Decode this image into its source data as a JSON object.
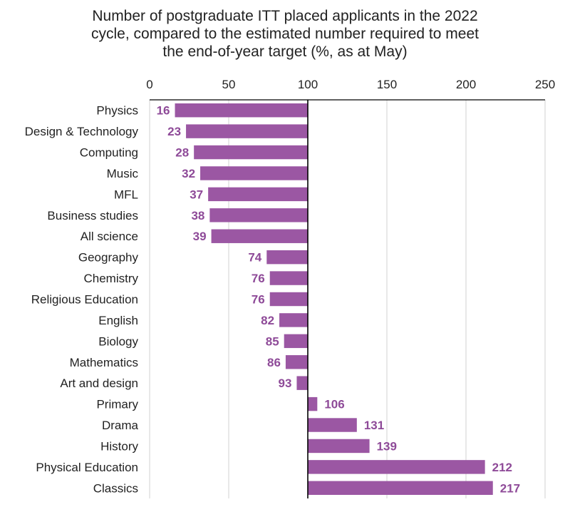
{
  "chart_data": {
    "type": "bar",
    "orientation": "horizontal",
    "title_lines": [
      "Number of postgraduate ITT placed applicants in the 2022",
      "cycle, compared to the estimated number required to meet",
      "the end-of-year target (%, as at May)"
    ],
    "categories": [
      "Physics",
      "Design & Technology",
      "Computing",
      "Music",
      "MFL",
      "Business studies",
      "All science",
      "Geography",
      "Chemistry",
      "Religious Education",
      "English",
      "Biology",
      "Mathematics",
      "Art and design",
      "Primary",
      "Drama",
      "History",
      "Physical Education",
      "Classics"
    ],
    "values": [
      16,
      23,
      28,
      32,
      37,
      38,
      39,
      74,
      76,
      76,
      82,
      85,
      86,
      93,
      106,
      131,
      139,
      212,
      217
    ],
    "baseline": 100,
    "xlim": [
      0,
      250
    ],
    "xticks": [
      0,
      50,
      100,
      150,
      200,
      250
    ],
    "x_axis_position": "top",
    "grid": true,
    "legend": false,
    "colors": {
      "bar": "#9b57a3",
      "label": "#8e4a98",
      "grid": "#d0d0d0",
      "axis": "#000000"
    }
  }
}
